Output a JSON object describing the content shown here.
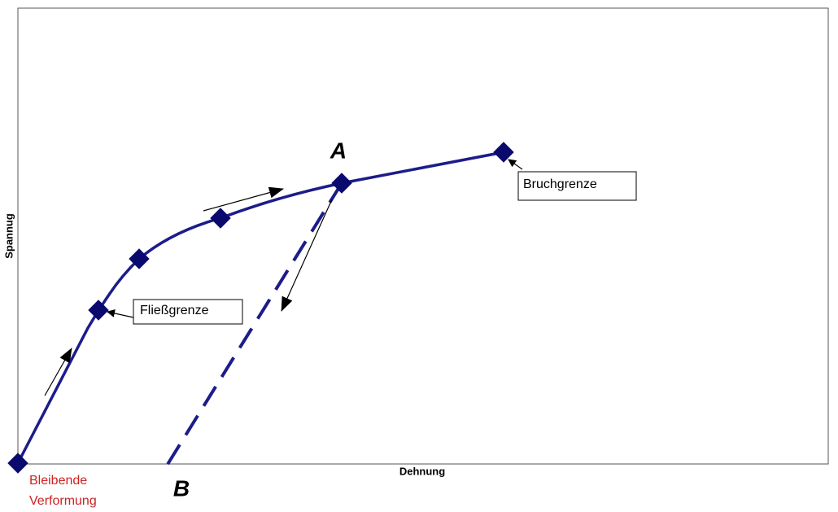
{
  "labels": {
    "x_axis": "Dehnung",
    "y_axis": "Spannug",
    "point_a": "A",
    "point_b": "B",
    "yield_limit": "Fließgrenze",
    "fracture_limit": "Bruchgrenze",
    "permanent_deformation": [
      "Bleibende",
      "Verformung"
    ]
  }
}
